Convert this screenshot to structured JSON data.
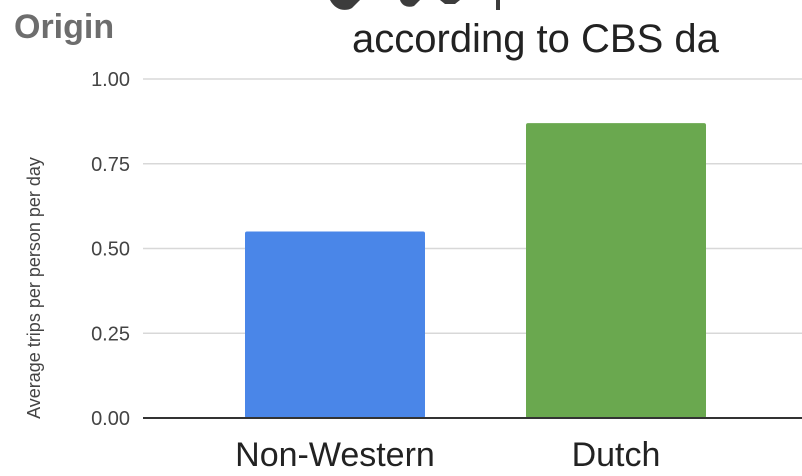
{
  "chart_data": {
    "type": "bar",
    "title": "…g … according to CBS da…",
    "title_line2": "according to CBS da",
    "legend_title": "Origin",
    "xlabel": "",
    "ylabel": "Average trips per person per day",
    "categories": [
      "Non-Western",
      "Dutch"
    ],
    "values": [
      0.55,
      0.87
    ],
    "colors": [
      "#4a86e8",
      "#6aa84f"
    ],
    "ylim": [
      0,
      1
    ],
    "yticks": [
      "0.00",
      "0.25",
      "0.50",
      "0.75",
      "1.00"
    ],
    "ytick_values": [
      0,
      0.25,
      0.5,
      0.75,
      1
    ],
    "grid": true,
    "legend_position": "top-left"
  }
}
